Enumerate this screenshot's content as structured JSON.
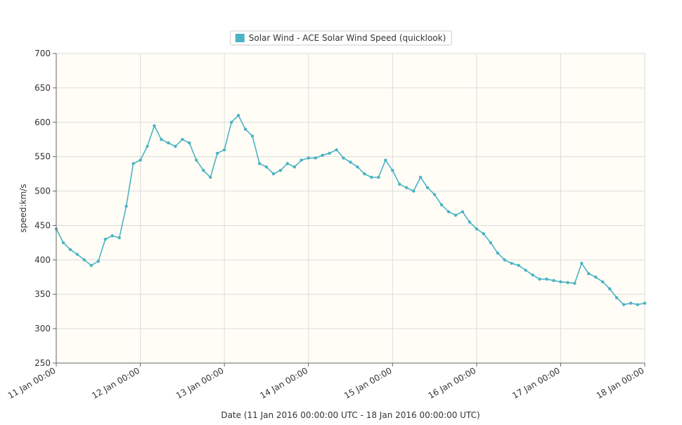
{
  "chart_data": {
    "type": "line",
    "title": "",
    "xlabel": "Date (11 Jan 2016 00:00:00 UTC - 18 Jan 2016 00:00:00 UTC)",
    "ylabel": "speed:km/s",
    "ylim": [
      250,
      700
    ],
    "y_ticks": [
      250,
      300,
      350,
      400,
      450,
      500,
      550,
      600,
      650,
      700
    ],
    "x_range_days": [
      0,
      7
    ],
    "x_tick_labels": [
      "11 Jan 00:00",
      "12 Jan 00:00",
      "13 Jan 00:00",
      "14 Jan 00:00",
      "15 Jan 00:00",
      "16 Jan 00:00",
      "17 Jan 00:00",
      "18 Jan 00:00"
    ],
    "grid": true,
    "legend_position": "top-center",
    "colors": {
      "series": "#4bb3c4",
      "plot_bg": "#fffdf6",
      "grid": "#dcdcdc",
      "axis": "#666666"
    },
    "series": [
      {
        "name": "Solar Wind - ACE Solar Wind Speed (quicklook)",
        "x": [
          "11 Jan 00:00",
          "11 Jan 02:00",
          "11 Jan 04:00",
          "11 Jan 06:00",
          "11 Jan 08:00",
          "11 Jan 10:00",
          "11 Jan 12:00",
          "11 Jan 14:00",
          "11 Jan 16:00",
          "11 Jan 18:00",
          "11 Jan 20:00",
          "11 Jan 22:00",
          "12 Jan 00:00",
          "12 Jan 02:00",
          "12 Jan 04:00",
          "12 Jan 06:00",
          "12 Jan 08:00",
          "12 Jan 10:00",
          "12 Jan 12:00",
          "12 Jan 14:00",
          "12 Jan 16:00",
          "12 Jan 18:00",
          "12 Jan 20:00",
          "12 Jan 22:00",
          "13 Jan 00:00",
          "13 Jan 02:00",
          "13 Jan 04:00",
          "13 Jan 06:00",
          "13 Jan 08:00",
          "13 Jan 10:00",
          "13 Jan 12:00",
          "13 Jan 14:00",
          "13 Jan 16:00",
          "13 Jan 18:00",
          "13 Jan 20:00",
          "13 Jan 22:00",
          "14 Jan 00:00",
          "14 Jan 02:00",
          "14 Jan 04:00",
          "14 Jan 06:00",
          "14 Jan 08:00",
          "14 Jan 10:00",
          "14 Jan 12:00",
          "14 Jan 14:00",
          "14 Jan 16:00",
          "14 Jan 18:00",
          "14 Jan 20:00",
          "14 Jan 22:00",
          "15 Jan 00:00",
          "15 Jan 02:00",
          "15 Jan 04:00",
          "15 Jan 06:00",
          "15 Jan 08:00",
          "15 Jan 10:00",
          "15 Jan 12:00",
          "15 Jan 14:00",
          "15 Jan 16:00",
          "15 Jan 18:00",
          "15 Jan 20:00",
          "15 Jan 22:00",
          "16 Jan 00:00",
          "16 Jan 02:00",
          "16 Jan 04:00",
          "16 Jan 06:00",
          "16 Jan 08:00",
          "16 Jan 10:00",
          "16 Jan 12:00",
          "16 Jan 14:00",
          "16 Jan 16:00",
          "16 Jan 18:00",
          "16 Jan 20:00",
          "16 Jan 22:00",
          "17 Jan 00:00",
          "17 Jan 02:00",
          "17 Jan 04:00",
          "17 Jan 06:00",
          "17 Jan 08:00",
          "17 Jan 10:00",
          "17 Jan 12:00",
          "17 Jan 14:00",
          "17 Jan 16:00",
          "17 Jan 18:00",
          "17 Jan 20:00",
          "17 Jan 22:00",
          "18 Jan 00:00"
        ],
        "values": [
          445,
          425,
          415,
          408,
          400,
          392,
          398,
          430,
          435,
          432,
          478,
          540,
          545,
          565,
          595,
          575,
          570,
          565,
          575,
          570,
          545,
          530,
          520,
          555,
          560,
          600,
          610,
          590,
          580,
          540,
          535,
          525,
          530,
          540,
          535,
          545,
          548,
          548,
          552,
          555,
          560,
          548,
          542,
          535,
          525,
          520,
          520,
          545,
          530,
          510,
          505,
          500,
          520,
          505,
          495,
          480,
          470,
          465,
          470,
          455,
          445,
          438,
          425,
          410,
          400,
          395,
          392,
          385,
          378,
          372,
          372,
          370,
          368,
          367,
          366,
          395,
          380,
          375,
          368,
          358,
          345,
          335,
          337,
          335,
          337
        ]
      }
    ]
  }
}
